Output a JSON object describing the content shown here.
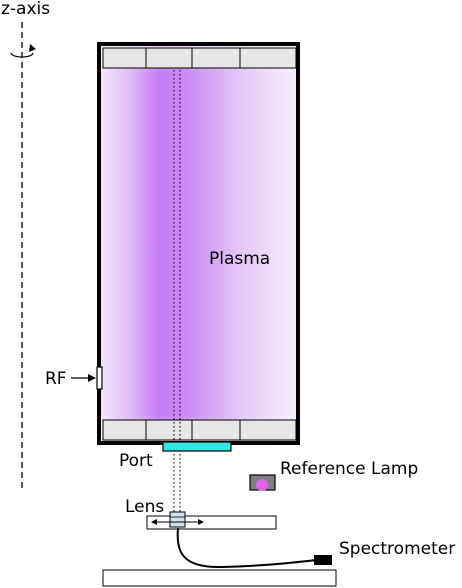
{
  "labels": {
    "z_axis": "z-axis",
    "plasma": "Plasma",
    "rf": "RF",
    "port": "Port",
    "reference_lamp": "Reference Lamp",
    "lens": "Lens",
    "spectrometer": "Spectrometer"
  },
  "colors": {
    "plasma_core": "#c77af2",
    "plasma_edge": "#f3e8fd",
    "port": "#33e6e6",
    "lamp_bulb": "#e064e8",
    "lamp_housing": "#808080",
    "frame": "#000000",
    "electrode": "#e6e6e6"
  }
}
